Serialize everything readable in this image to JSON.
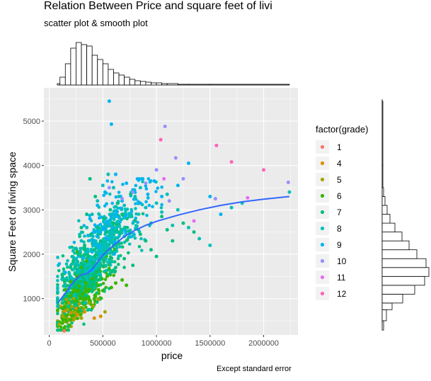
{
  "title": "Relation Between Price and square feet of livi",
  "subtitle": "scatter plot & smooth plot",
  "caption": "Except standard error",
  "chart_data": {
    "type": "scatter",
    "xlabel": "price",
    "ylabel": "Square Feet of living space",
    "xlim": [
      -50000,
      2320000
    ],
    "ylim": [
      180,
      5750
    ],
    "x_ticks": [
      0,
      500000,
      1000000,
      1500000,
      2000000
    ],
    "x_tick_labels": [
      "0",
      "500000",
      "1000000",
      "1500000",
      "2000000"
    ],
    "y_ticks": [
      1000,
      2000,
      3000,
      4000,
      5000
    ],
    "y_tick_labels": [
      "1000",
      "2000",
      "3000",
      "4000",
      "5000"
    ],
    "grid": true,
    "legend_title": "factor(grade)",
    "legend_position": "right",
    "series": [
      {
        "name": "1",
        "color": "#F8766D",
        "points": [
          [
            140000,
            270
          ]
        ]
      },
      {
        "name": "4",
        "color": "#D89000",
        "points": [
          [
            110000,
            820
          ],
          [
            150000,
            720
          ],
          [
            200000,
            680
          ],
          [
            260000,
            640
          ],
          [
            330000,
            700
          ],
          [
            420000,
            560
          ],
          [
            480000,
            600
          ],
          [
            180000,
            900
          ],
          [
            250000,
            780
          ]
        ]
      },
      {
        "name": "5",
        "color": "#A3A500",
        "points": [
          [
            90000,
            420
          ],
          [
            130000,
            600
          ],
          [
            170000,
            750
          ],
          [
            210000,
            820
          ],
          [
            240000,
            690
          ],
          [
            280000,
            880
          ],
          [
            320000,
            760
          ],
          [
            370000,
            900
          ],
          [
            410000,
            830
          ],
          [
            460000,
            980
          ],
          [
            520000,
            700
          ],
          [
            300000,
            560
          ],
          [
            160000,
            980
          ],
          [
            230000,
            1000
          ]
        ]
      },
      {
        "name": "6",
        "color": "#39B600",
        "points": [
          [
            120000,
            780
          ],
          [
            160000,
            900
          ],
          [
            190000,
            1050
          ],
          [
            220000,
            1150
          ],
          [
            250000,
            950
          ],
          [
            280000,
            1280
          ],
          [
            310000,
            1100
          ],
          [
            340000,
            1350
          ],
          [
            370000,
            1200
          ],
          [
            400000,
            1450
          ],
          [
            430000,
            1080
          ],
          [
            460000,
            1300
          ],
          [
            500000,
            1180
          ],
          [
            540000,
            1500
          ],
          [
            580000,
            1250
          ],
          [
            620000,
            1350
          ],
          [
            680000,
            1420
          ],
          [
            720000,
            1300
          ],
          [
            200000,
            1380
          ],
          [
            260000,
            1500
          ],
          [
            150000,
            1200
          ],
          [
            300000,
            1700
          ],
          [
            350000,
            1850
          ],
          [
            260000,
            2050
          ]
        ]
      },
      {
        "name": "7",
        "color": "#00BF7D",
        "points": [
          [
            150000,
            1400
          ],
          [
            200000,
            1700
          ],
          [
            240000,
            1550
          ],
          [
            270000,
            2000
          ],
          [
            300000,
            1800
          ],
          [
            330000,
            2200
          ],
          [
            360000,
            1950
          ],
          [
            390000,
            2450
          ],
          [
            420000,
            2100
          ],
          [
            450000,
            2600
          ],
          [
            480000,
            2300
          ],
          [
            510000,
            2800
          ],
          [
            540000,
            2500
          ],
          [
            570000,
            3000
          ],
          [
            600000,
            2700
          ],
          [
            640000,
            3150
          ],
          [
            680000,
            2900
          ],
          [
            720000,
            2600
          ],
          [
            760000,
            3350
          ],
          [
            800000,
            2750
          ],
          [
            850000,
            2450
          ],
          [
            900000,
            2300
          ],
          [
            950000,
            2100
          ],
          [
            1000000,
            1950
          ],
          [
            1050000,
            2850
          ],
          [
            1100000,
            2550
          ],
          [
            1150000,
            2300
          ],
          [
            1250000,
            2700
          ],
          [
            1350000,
            2500
          ],
          [
            380000,
            3700
          ],
          [
            430000,
            3300
          ],
          [
            350000,
            2900
          ],
          [
            300000,
            2600
          ],
          [
            620000,
            1700
          ],
          [
            700000,
            1900
          ],
          [
            780000,
            1750
          ]
        ]
      },
      {
        "name": "8",
        "color": "#00C0B8",
        "points": [
          [
            250000,
            1900
          ],
          [
            300000,
            2300
          ],
          [
            350000,
            2600
          ],
          [
            400000,
            2900
          ],
          [
            450000,
            3200
          ],
          [
            500000,
            3550
          ],
          [
            550000,
            3800
          ],
          [
            600000,
            3500
          ],
          [
            650000,
            3300
          ],
          [
            700000,
            3100
          ],
          [
            750000,
            2900
          ],
          [
            800000,
            3300
          ],
          [
            850000,
            3500
          ],
          [
            900000,
            3050
          ],
          [
            950000,
            2700
          ],
          [
            1000000,
            3150
          ],
          [
            1050000,
            2950
          ],
          [
            1100000,
            3350
          ],
          [
            1150000,
            2650
          ],
          [
            1200000,
            3000
          ],
          [
            1300000,
            2600
          ],
          [
            1400000,
            2350
          ],
          [
            1500000,
            2200
          ],
          [
            1700000,
            3050
          ],
          [
            1800000,
            3150
          ],
          [
            2240000,
            3400
          ],
          [
            600000,
            2200
          ],
          [
            700000,
            2400
          ],
          [
            500000,
            2100
          ]
        ]
      },
      {
        "name": "9",
        "color": "#00B4EF",
        "points": [
          [
            380000,
            2800
          ],
          [
            450000,
            3100
          ],
          [
            520000,
            3400
          ],
          [
            560000,
            5450
          ],
          [
            580000,
            4930
          ],
          [
            620000,
            3800
          ],
          [
            680000,
            3200
          ],
          [
            720000,
            3600
          ],
          [
            780000,
            3450
          ],
          [
            850000,
            3150
          ],
          [
            920000,
            3350
          ],
          [
            980000,
            3650
          ],
          [
            1050000,
            3300
          ],
          [
            1200000,
            3550
          ],
          [
            1300000,
            4050
          ],
          [
            1500000,
            3300
          ],
          [
            1600000,
            2900
          ]
        ]
      },
      {
        "name": "10",
        "color": "#9590FF",
        "points": [
          [
            560000,
            3500
          ],
          [
            680000,
            3250
          ],
          [
            780000,
            3400
          ],
          [
            900000,
            3600
          ],
          [
            1000000,
            3900
          ],
          [
            1080000,
            4880
          ],
          [
            1120000,
            3200
          ],
          [
            1180000,
            4170
          ],
          [
            1250000,
            3700
          ],
          [
            1550000,
            3250
          ],
          [
            2230000,
            3620
          ]
        ]
      },
      {
        "name": "11",
        "color": "#E76BF3",
        "points": [
          [
            1070000,
            3700
          ],
          [
            1350000,
            2750
          ],
          [
            1850000,
            3270
          ]
        ]
      },
      {
        "name": "12",
        "color": "#FF62BC",
        "points": [
          [
            1040000,
            4580
          ],
          [
            1560000,
            4450
          ],
          [
            1700000,
            4080
          ],
          [
            2000000,
            3900
          ]
        ]
      }
    ],
    "smooth_line": [
      [
        80000,
        900
      ],
      [
        150000,
        1120
      ],
      [
        200000,
        1290
      ],
      [
        250000,
        1440
      ],
      [
        300000,
        1540
      ],
      [
        350000,
        1560
      ],
      [
        400000,
        1660
      ],
      [
        450000,
        1820
      ],
      [
        500000,
        1980
      ],
      [
        600000,
        2200
      ],
      [
        700000,
        2400
      ],
      [
        800000,
        2540
      ],
      [
        900000,
        2650
      ],
      [
        1000000,
        2740
      ],
      [
        1200000,
        2880
      ],
      [
        1400000,
        3000
      ],
      [
        1600000,
        3100
      ],
      [
        1800000,
        3180
      ],
      [
        2000000,
        3240
      ],
      [
        2240000,
        3300
      ]
    ],
    "price_histogram": {
      "bins": [
        [
          75000,
          100000,
          2
        ],
        [
          100000,
          150000,
          11
        ],
        [
          150000,
          200000,
          30
        ],
        [
          200000,
          250000,
          52
        ],
        [
          250000,
          300000,
          60
        ],
        [
          300000,
          350000,
          57
        ],
        [
          350000,
          400000,
          55
        ],
        [
          400000,
          450000,
          42
        ],
        [
          450000,
          500000,
          36
        ],
        [
          500000,
          550000,
          30
        ],
        [
          550000,
          600000,
          22
        ],
        [
          600000,
          650000,
          17
        ],
        [
          650000,
          700000,
          14
        ],
        [
          700000,
          750000,
          11
        ],
        [
          750000,
          800000,
          8
        ],
        [
          800000,
          850000,
          6
        ],
        [
          850000,
          900000,
          5
        ],
        [
          900000,
          950000,
          4
        ],
        [
          950000,
          1000000,
          3
        ],
        [
          1000000,
          1050000,
          3
        ],
        [
          1050000,
          1100000,
          2
        ],
        [
          1100000,
          1200000,
          2
        ],
        [
          1200000,
          1300000,
          1
        ],
        [
          1300000,
          1500000,
          1
        ],
        [
          1500000,
          2240000,
          1
        ]
      ]
    },
    "sqft_histogram": {
      "bins": [
        [
          290,
          500,
          2
        ],
        [
          500,
          750,
          6
        ],
        [
          750,
          900,
          14
        ],
        [
          900,
          1100,
          29
        ],
        [
          1100,
          1300,
          46
        ],
        [
          1300,
          1500,
          60
        ],
        [
          1500,
          1700,
          66
        ],
        [
          1700,
          1900,
          62
        ],
        [
          1900,
          2100,
          49
        ],
        [
          2100,
          2300,
          38
        ],
        [
          2300,
          2500,
          28
        ],
        [
          2500,
          2700,
          18
        ],
        [
          2700,
          2900,
          11
        ],
        [
          2900,
          3100,
          7
        ],
        [
          3100,
          3300,
          4
        ],
        [
          3300,
          3500,
          2
        ],
        [
          3500,
          4000,
          1
        ],
        [
          4000,
          5450,
          1
        ]
      ]
    }
  }
}
